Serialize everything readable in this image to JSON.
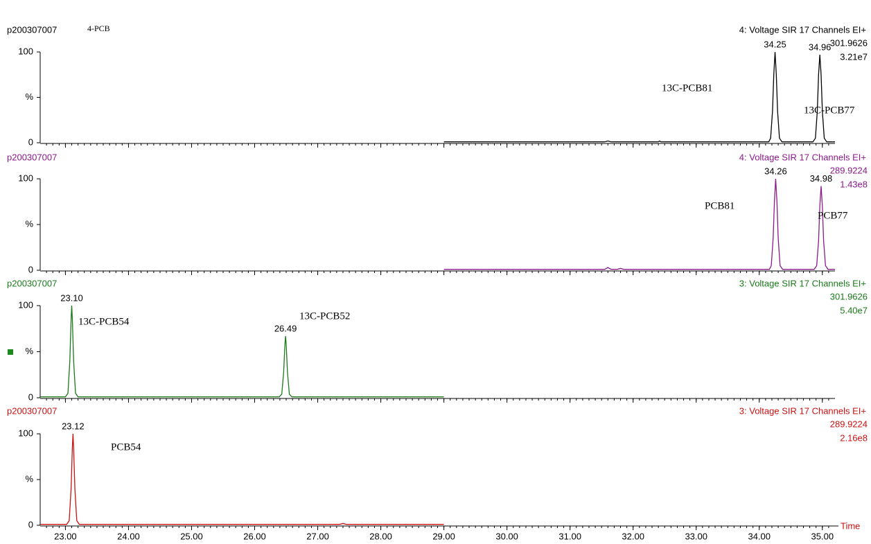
{
  "chart_data": [
    {
      "type": "line",
      "header": "p200307007",
      "subtitle": "4-PCB",
      "channel": "4: Voltage SIR 17 Channels EI+",
      "mass": "301.9626",
      "intensity": "3.21e7",
      "color": "#000000",
      "xlim": [
        22.6,
        35.2
      ],
      "ylim": [
        0,
        100
      ],
      "yticks": [
        0,
        {
          "value": 50,
          "label": "%"
        },
        100
      ],
      "x": [
        29.0,
        31.55,
        31.6,
        31.65,
        32.4,
        32.42,
        32.44,
        34.15,
        34.18,
        34.21,
        34.23,
        34.25,
        34.27,
        34.29,
        34.32,
        34.36,
        34.85,
        34.89,
        34.92,
        34.94,
        34.96,
        34.98,
        35.0,
        35.03,
        35.07,
        35.2
      ],
      "values": [
        1,
        1,
        2,
        1,
        1,
        2,
        1,
        1,
        5,
        35,
        75,
        100,
        75,
        35,
        5,
        1,
        1,
        5,
        35,
        75,
        97,
        75,
        35,
        5,
        1,
        1
      ],
      "peak_labels": [
        {
          "value": 34.25,
          "label": "34.25"
        },
        {
          "value": 34.96,
          "label": "34.96"
        }
      ],
      "compounds": [
        "13C-PCB81",
        "13C-PCB77"
      ]
    },
    {
      "type": "line",
      "header": "p200307007",
      "channel": "4: Voltage SIR 17 Channels EI+",
      "mass": "289.9224",
      "intensity": "1.43e8",
      "color": "#8b1a8b",
      "xlim": [
        22.6,
        35.2
      ],
      "ylim": [
        0,
        100
      ],
      "yticks": [
        0,
        {
          "value": 50,
          "label": "%"
        },
        100
      ],
      "x": [
        29.0,
        31.55,
        31.6,
        31.65,
        31.75,
        31.8,
        31.85,
        34.16,
        34.19,
        34.22,
        34.24,
        34.26,
        34.28,
        34.3,
        34.33,
        34.37,
        34.87,
        34.91,
        34.94,
        34.96,
        34.98,
        35.0,
        35.02,
        35.05,
        35.09,
        35.2
      ],
      "values": [
        1,
        1,
        3,
        1,
        1,
        2,
        1,
        1,
        5,
        35,
        75,
        100,
        75,
        35,
        5,
        1,
        1,
        5,
        32,
        70,
        92,
        70,
        32,
        5,
        1,
        1
      ],
      "peak_labels": [
        {
          "value": 34.26,
          "label": "34.26"
        },
        {
          "value": 34.98,
          "label": "34.98"
        }
      ],
      "compounds": [
        "PCB81",
        "PCB77"
      ]
    },
    {
      "type": "line",
      "header": "p200307007",
      "channel": "3: Voltage SIR 17 Channels EI+",
      "mass": "301.9626",
      "intensity": "5.40e7",
      "color": "#1a7a1a",
      "xlim": [
        22.6,
        35.2
      ],
      "ylim": [
        0,
        100
      ],
      "yticks": [
        0,
        {
          "value": 50,
          "label": "%"
        },
        100
      ],
      "x": [
        22.6,
        23.0,
        23.04,
        23.07,
        23.09,
        23.1,
        23.11,
        23.13,
        23.16,
        23.2,
        26.39,
        26.43,
        26.46,
        26.48,
        26.49,
        26.5,
        26.52,
        26.55,
        26.59,
        29.0
      ],
      "values": [
        1,
        1,
        5,
        40,
        85,
        100,
        85,
        40,
        5,
        1,
        1,
        4,
        28,
        58,
        67,
        58,
        28,
        4,
        1,
        1
      ],
      "peak_labels": [
        {
          "value": 23.1,
          "label": "23.10"
        },
        {
          "value": 26.49,
          "label": "26.49"
        }
      ],
      "compounds": [
        "13C-PCB54",
        "13C-PCB52"
      ]
    },
    {
      "type": "line",
      "header": "p200307007",
      "channel": "3: Voltage SIR 17 Channels EI+",
      "mass": "289.9224",
      "intensity": "2.16e8",
      "color": "#cc1111",
      "xlim": [
        22.6,
        35.2
      ],
      "ylim": [
        0,
        100
      ],
      "yticks": [
        0,
        {
          "value": 50,
          "label": "%"
        },
        100
      ],
      "x": [
        22.6,
        23.02,
        23.06,
        23.09,
        23.11,
        23.12,
        23.13,
        23.15,
        23.18,
        23.22,
        27.35,
        27.4,
        27.45,
        29.0
      ],
      "values": [
        1,
        1,
        5,
        40,
        85,
        100,
        85,
        40,
        5,
        1,
        1,
        2,
        1,
        1
      ],
      "peak_labels": [
        {
          "value": 23.12,
          "label": "23.12"
        }
      ],
      "compounds": [
        "PCB54"
      ],
      "xlabel": "Time",
      "xticks": [
        {
          "value": 23,
          "label": "23.00"
        },
        {
          "value": 24,
          "label": "24.00"
        },
        {
          "value": 25,
          "label": "25.00"
        },
        {
          "value": 26,
          "label": "26.00"
        },
        {
          "value": 27,
          "label": "27.00"
        },
        {
          "value": 28,
          "label": "28.00"
        },
        {
          "value": 29,
          "label": "29.00"
        },
        {
          "value": 30,
          "label": "30.00"
        },
        {
          "value": 31,
          "label": "31.00"
        },
        {
          "value": 32,
          "label": "32.00"
        },
        {
          "value": 33,
          "label": "33.00"
        },
        {
          "value": 34,
          "label": "34.00"
        },
        {
          "value": 35,
          "label": "35.00"
        }
      ]
    }
  ]
}
